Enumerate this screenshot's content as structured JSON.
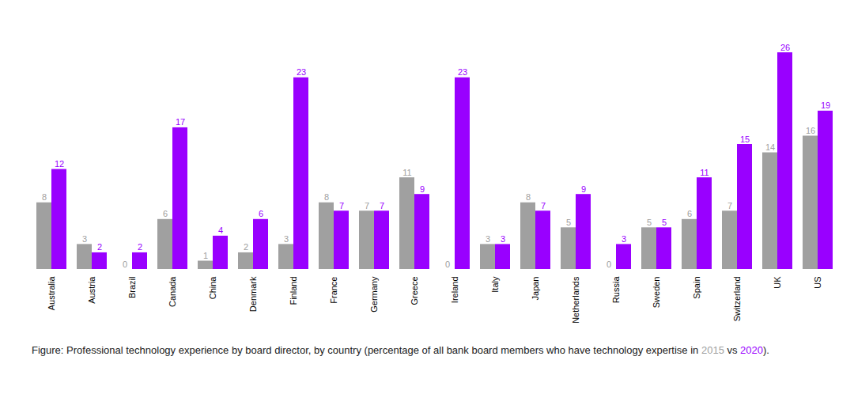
{
  "chart_data": {
    "type": "bar",
    "categories": [
      "Australia",
      "Austria",
      "Brazil",
      "Canada",
      "China",
      "Denmark",
      "Finland",
      "France",
      "Germany",
      "Greece",
      "Ireland",
      "Italy",
      "Japan",
      "Netherlands",
      "Russia",
      "Sweden",
      "Spain",
      "Switzerland",
      "UK",
      "US"
    ],
    "series": [
      {
        "name": "2015",
        "color": "#a0a0a0",
        "values": [
          8,
          3,
          0,
          6,
          1,
          2,
          3,
          8,
          7,
          11,
          0,
          3,
          8,
          5,
          0,
          5,
          6,
          7,
          14,
          16
        ]
      },
      {
        "name": "2020",
        "color": "#9900ff",
        "values": [
          12,
          2,
          2,
          17,
          4,
          6,
          23,
          7,
          7,
          9,
          23,
          3,
          7,
          9,
          3,
          5,
          11,
          15,
          26,
          19
        ]
      }
    ],
    "caption": "Figure: Professional technology experience by board director, by country (percentage of all bank board members who have technology expertise in 2015 vs 2020).",
    "ylim": [
      0,
      30
    ],
    "grid": false,
    "data_labels": true,
    "tick_labels": "x"
  }
}
